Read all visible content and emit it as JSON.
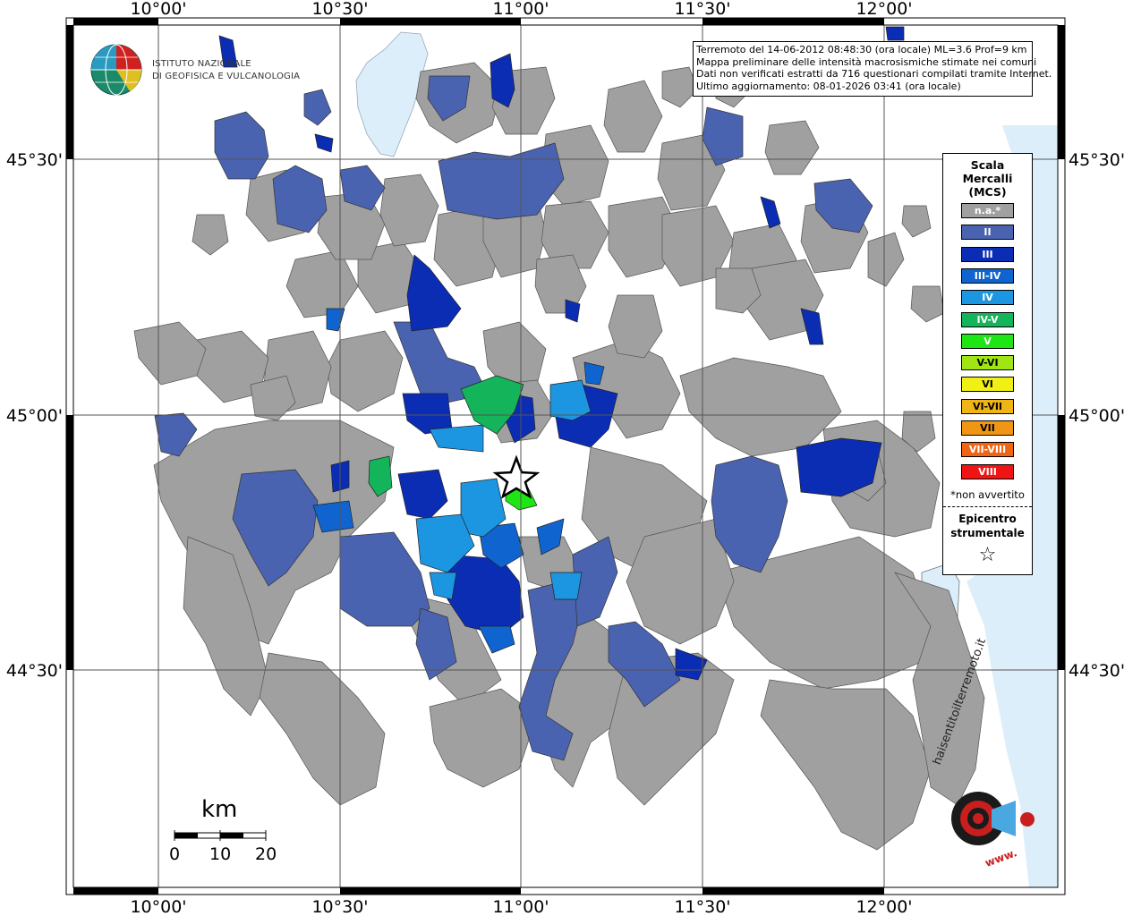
{
  "map": {
    "longitude_labels": [
      "10°00'",
      "10°30'",
      "11°00'",
      "11°30'",
      "12°00'"
    ],
    "latitude_labels": [
      "45°30'",
      "45°00'",
      "44°30'"
    ]
  },
  "info_box": {
    "line1": "Terremoto del 14-06-2012 08:48:30 (ora locale) ML=3.6 Prof=9 km",
    "line2": "Mappa preliminare delle intensità macrosismiche stimate nei comuni",
    "line3": "Dati non verificati estratti da 716 questionari compilati tramite Internet.",
    "line4": "Ultimo aggiornamento: 08-01-2026 03:41 (ora locale)"
  },
  "legend": {
    "title_line1": "Scala",
    "title_line2": "Mercalli",
    "title_line3": "(MCS)",
    "items": [
      {
        "label": "n.a.*",
        "color": "#a0a0a0"
      },
      {
        "label": "II",
        "color": "#4a63b0"
      },
      {
        "label": "III",
        "color": "#0a2db4"
      },
      {
        "label": "III-IV",
        "color": "#0f64d0"
      },
      {
        "label": "IV",
        "color": "#1c96e0"
      },
      {
        "label": "IV-V",
        "color": "#14b45a"
      },
      {
        "label": "V",
        "color": "#1ee614"
      },
      {
        "label": "V-VI",
        "color": "#a0e614"
      },
      {
        "label": "VI",
        "color": "#f0f014"
      },
      {
        "label": "VI-VII",
        "color": "#f0b414"
      },
      {
        "label": "VII",
        "color": "#f09614"
      },
      {
        "label": "VII-VIII",
        "color": "#f06414"
      },
      {
        "label": "VIII",
        "color": "#f01414"
      }
    ],
    "note": "*non avvertito",
    "epicenter_line1": "Epicentro",
    "epicenter_line2": "strumentale"
  },
  "logo": {
    "line1": "ISTITUTO NAZIONALE",
    "line2": "DI GEOFISICA E VULCANOLOGIA"
  },
  "scale_bar": {
    "unit": "km",
    "labels": [
      "0",
      "10",
      "20"
    ]
  },
  "stamp": {
    "text": "haisentitoilterremoto.it",
    "url_text": "www."
  }
}
